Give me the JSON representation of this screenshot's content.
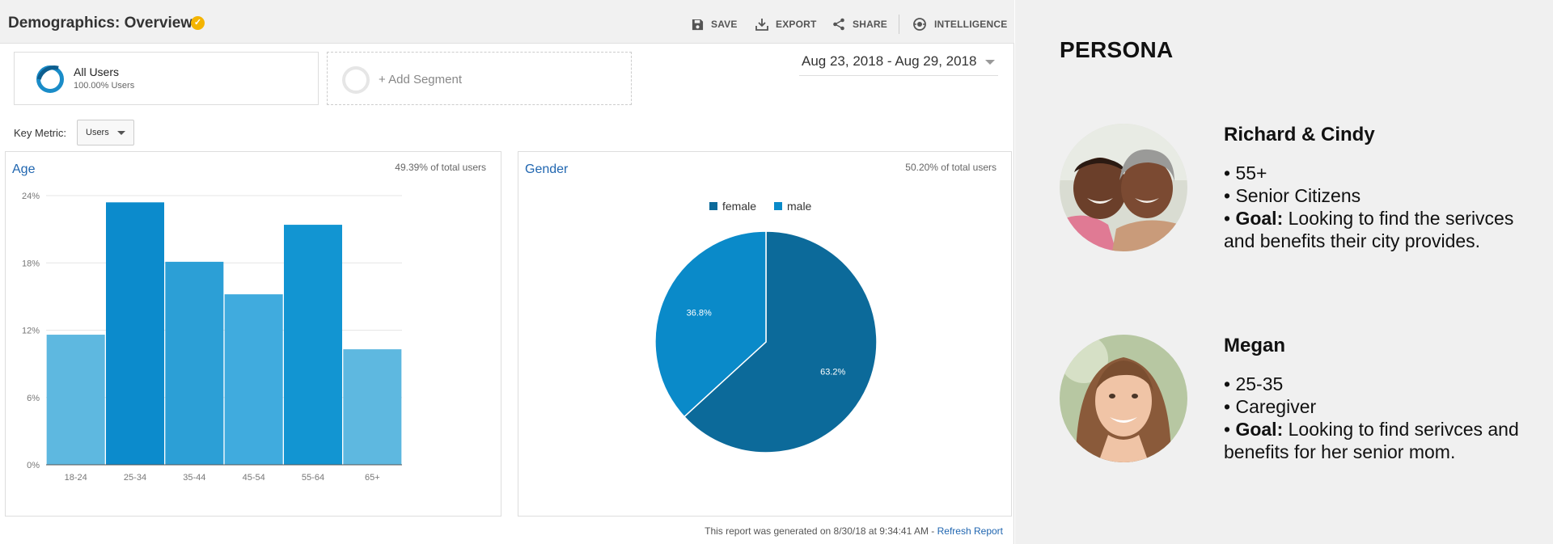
{
  "header": {
    "title": "Demographics: Overview",
    "actions": [
      {
        "label": "SAVE",
        "icon": "save-icon"
      },
      {
        "label": "EXPORT",
        "icon": "export-icon"
      },
      {
        "label": "SHARE",
        "icon": "share-icon"
      },
      {
        "label": "INTELLIGENCE",
        "icon": "intelligence-icon"
      }
    ]
  },
  "segments": {
    "all_users": {
      "name": "All Users",
      "pct": "100.00% Users"
    },
    "add_segment": {
      "label": "+ Add Segment"
    }
  },
  "date_range": "Aug 23, 2018 - Aug 29, 2018",
  "key_metric": {
    "label": "Key Metric:",
    "value": "Users"
  },
  "age": {
    "title": "Age",
    "pct_of_total": "49.39% of total users"
  },
  "gender": {
    "title": "Gender",
    "pct_of_total": "50.20% of total users"
  },
  "chart_data": [
    {
      "type": "bar",
      "title": "Age",
      "categories": [
        "18-24",
        "25-34",
        "35-44",
        "45-54",
        "55-64",
        "65+"
      ],
      "values": [
        11.6,
        23.4,
        18.1,
        15.2,
        21.4,
        10.3
      ],
      "yticks": [
        "0%",
        "6%",
        "12%",
        "18%",
        "24%"
      ],
      "ylim": [
        0,
        24
      ],
      "grid": true,
      "colors": [
        "#5eb8e0",
        "#0c8bcc",
        "#2c9fd6",
        "#40abde",
        "#1295d2",
        "#5eb8e0"
      ]
    },
    {
      "type": "pie",
      "title": "Gender",
      "legend": "top",
      "slices": [
        {
          "name": "female",
          "value": 63.2,
          "label": "63.2%",
          "color": "#0c6a9a"
        },
        {
          "name": "male",
          "value": 36.8,
          "label": "36.8%",
          "color": "#0a8ac9"
        }
      ]
    }
  ],
  "report_note": {
    "text": "This report was generated on 8/30/18 at 9:34:41 AM - ",
    "link": "Refresh Report"
  },
  "persona": {
    "title": "PERSONA",
    "people": [
      {
        "name": "Richard & Cindy",
        "bullets": [
          "55+",
          "Senior Citizens"
        ],
        "goal_label": "Goal:",
        "goal_text": "Looking to find the serivces and benefits their city provides."
      },
      {
        "name": "Megan",
        "bullets": [
          "25-35",
          "Caregiver"
        ],
        "goal_label": "Goal:",
        "goal_text": "Looking to find serivces and benefits for her senior mom."
      }
    ]
  }
}
